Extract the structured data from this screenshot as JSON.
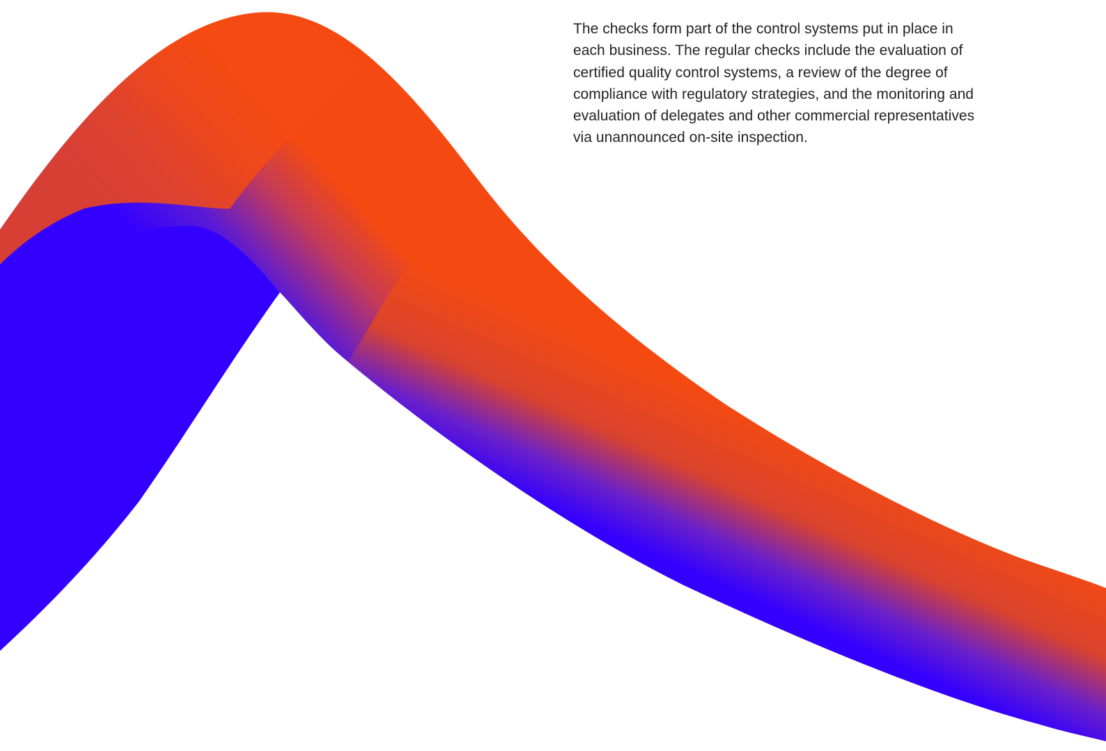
{
  "content": {
    "paragraph": "The checks form part of the control systems put in place in each business. The regular checks include the evaluation of certified quality control systems, a review of the degree of compliance with regulatory strategies, and the monitoring and evaluation of delegates and other commercial representatives via unannounced on-site inspection."
  },
  "decoration": {
    "ribbon": {
      "shape": "wave-ribbon",
      "color_orange": "#F44A12",
      "color_blue": "#3300FF"
    }
  }
}
